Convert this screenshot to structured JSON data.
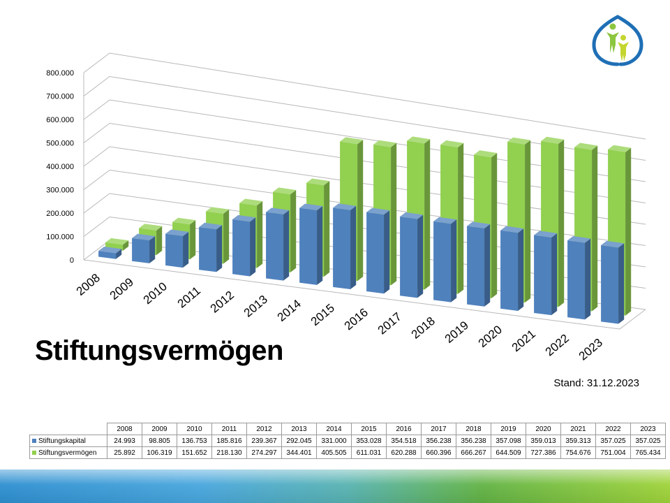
{
  "chart_data": {
    "type": "bar",
    "variant": "3d-clustered",
    "title": "Stiftungsvermögen",
    "categories": [
      "2008",
      "2009",
      "2010",
      "2011",
      "2012",
      "2013",
      "2014",
      "2015",
      "2016",
      "2017",
      "2018",
      "2019",
      "2020",
      "2021",
      "2022",
      "2023"
    ],
    "series": [
      {
        "name": "Stiftungskapital",
        "color": "#4f81bd",
        "values": [
          24993,
          98805,
          136753,
          185816,
          239367,
          292045,
          331000,
          353028,
          354518,
          356238,
          356238,
          357098,
          359013,
          359313,
          357025,
          357025
        ],
        "display": [
          "24.993",
          "98.805",
          "136.753",
          "185.816",
          "239.367",
          "292.045",
          "331.000",
          "353.028",
          "354.518",
          "356.238",
          "356.238",
          "357.098",
          "359.013",
          "359.313",
          "357.025",
          "357.025"
        ]
      },
      {
        "name": "Stiftungsvermögen",
        "color": "#92d050",
        "values": [
          25892,
          106319,
          151652,
          218130,
          274297,
          344401,
          405505,
          611031,
          620288,
          660396,
          666267,
          644509,
          727386,
          754676,
          751004,
          765434
        ],
        "display": [
          "25.892",
          "106.319",
          "151.652",
          "218.130",
          "274.297",
          "344.401",
          "405.505",
          "611.031",
          "620.288",
          "660.396",
          "666.267",
          "644.509",
          "727.386",
          "754.676",
          "751.004",
          "765.434"
        ]
      }
    ],
    "y_ticks": [
      "0",
      "100.000",
      "200.000",
      "300.000",
      "400.000",
      "500.000",
      "600.000",
      "700.000",
      "800.000"
    ],
    "ylim": [
      0,
      800000
    ],
    "grid": true,
    "legend": "data-table"
  },
  "page": {
    "heading": "Stiftungsvermögen",
    "stand": "Stand: 31.12.2023"
  },
  "logo": {
    "icon": "foundation-logo-leaf-people-icon",
    "colors": [
      "#1f6fb5",
      "#8cc63f",
      "#c4d62e"
    ]
  }
}
